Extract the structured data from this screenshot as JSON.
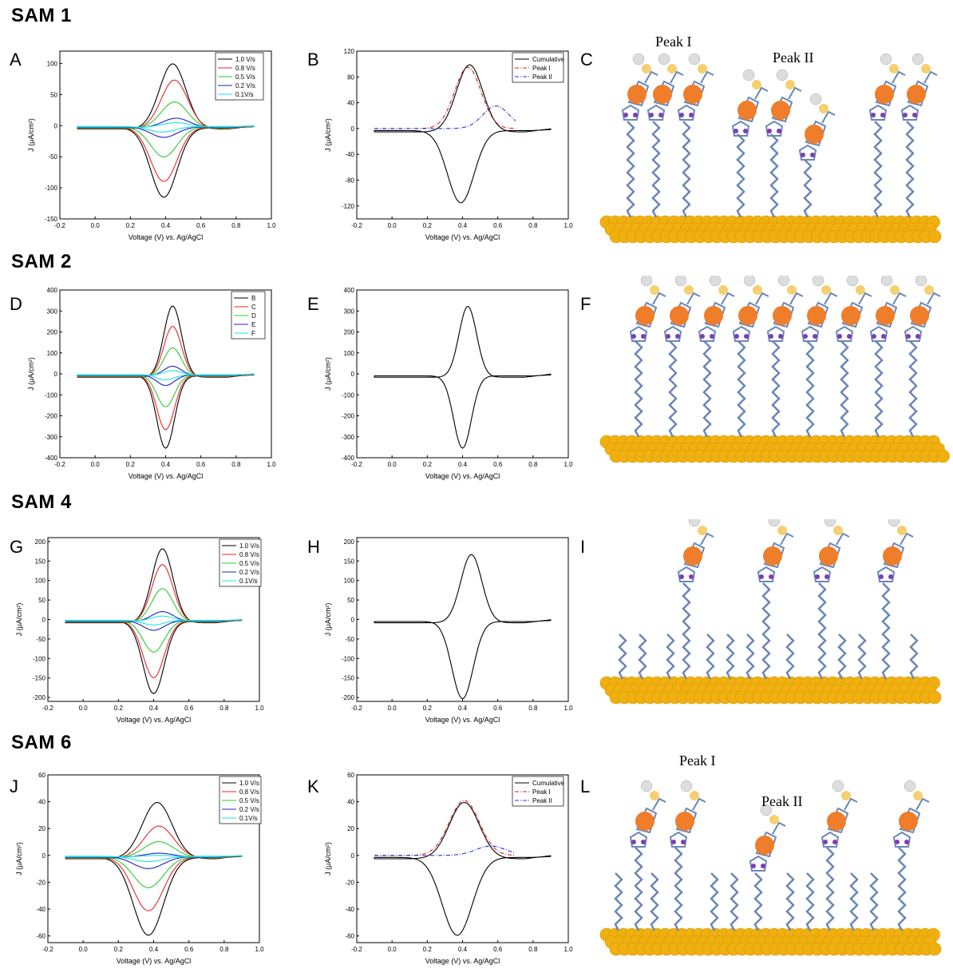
{
  "sam_titles": [
    "SAM 1",
    "SAM 2",
    "SAM 4",
    "SAM 6"
  ],
  "panel_letters": [
    "A",
    "B",
    "C",
    "D",
    "E",
    "F",
    "G",
    "H",
    "I",
    "J",
    "K",
    "L"
  ],
  "peak_labels": {
    "c_peak1": "Peak I",
    "c_peak2": "Peak II",
    "l_peak1": "Peak I",
    "l_peak2": "Peak II"
  },
  "colors": {
    "black": "#000000",
    "red": "#e8262a",
    "green": "#2ccc2c",
    "blue": "#2121c8",
    "cyan": "#1fe0e0",
    "red_dash": "#d42020",
    "blue_dash": "#3030d0",
    "gold": "#f0b010",
    "orange": "#ef7d2a",
    "chain": "#6a86b8",
    "purple": "#7b3fb5"
  },
  "chart_data": [
    {
      "id": "A",
      "type": "line",
      "xlabel": "Voltage (V) vs. Ag/AgCl",
      "ylabel": "J (μA/cm²)",
      "xlim": [
        -0.2,
        1.0
      ],
      "ylim": [
        -150,
        120
      ],
      "xticks": [
        "-0.2",
        "0.0",
        "0.2",
        "0.4",
        "0.6",
        "0.8",
        "1.0"
      ],
      "yticks": [
        "-150",
        "-100",
        "-50",
        "0",
        "50",
        "100"
      ],
      "legend": [
        "1.0 V/s",
        "0.8 V/s",
        "0.5 V/s",
        "0.2 V/s",
        "0.1V/s"
      ],
      "series": [
        {
          "name": "1.0 V/s",
          "peak_anodic": [
            0.44,
            105
          ],
          "peak_cathodic": [
            0.39,
            -112
          ]
        },
        {
          "name": "0.8 V/s",
          "peak_anodic": [
            0.45,
            78
          ],
          "peak_cathodic": [
            0.39,
            -87
          ]
        },
        {
          "name": "0.5 V/s",
          "peak_anodic": [
            0.45,
            42
          ],
          "peak_cathodic": [
            0.39,
            -48
          ]
        },
        {
          "name": "0.2 V/s",
          "peak_anodic": [
            0.46,
            15
          ],
          "peak_cathodic": [
            0.39,
            -17
          ]
        },
        {
          "name": "0.1V/s",
          "peak_anodic": [
            0.46,
            7
          ],
          "peak_cathodic": [
            0.38,
            -9
          ]
        }
      ]
    },
    {
      "id": "B",
      "type": "line",
      "xlabel": "Voltage (V) vs. Ag/AgCl",
      "ylabel": "J (μA/cm²)",
      "xlim": [
        -0.2,
        1.0
      ],
      "ylim": [
        -140,
        120
      ],
      "xticks": [
        "-0.2",
        "0.0",
        "0.2",
        "0.4",
        "0.6",
        "0.8",
        "1.0"
      ],
      "yticks": [
        "-120",
        "-80",
        "-40",
        "0",
        "40",
        "80",
        "120"
      ],
      "legend": [
        "Cumulative",
        "Peak I",
        "Peak II"
      ],
      "series": [
        {
          "name": "Cumulative",
          "peak_anodic": [
            0.44,
            104
          ],
          "peak_cathodic": [
            0.39,
            -112
          ]
        },
        {
          "name": "Peak I",
          "peak": [
            0.43,
            95
          ]
        },
        {
          "name": "Peak II",
          "peak": [
            0.59,
            35
          ]
        }
      ]
    },
    {
      "id": "D",
      "type": "line",
      "xlabel": "Voltage (V) vs. Ag/AgCl",
      "ylabel": "J (μA/cm²)",
      "xlim": [
        -0.2,
        1.0
      ],
      "ylim": [
        -400,
        400
      ],
      "xticks": [
        "-0.2",
        "0.0",
        "0.2",
        "0.4",
        "0.6",
        "0.8",
        "1.0"
      ],
      "yticks": [
        "-400",
        "-300",
        "-200",
        "-100",
        "0",
        "100",
        "200",
        "300",
        "400"
      ],
      "legend": [
        "B",
        "C",
        "D",
        "E",
        "F"
      ],
      "series": [
        {
          "name": "B",
          "peak_anodic": [
            0.44,
            340
          ],
          "peak_cathodic": [
            0.4,
            -345
          ]
        },
        {
          "name": "C",
          "peak_anodic": [
            0.44,
            240
          ],
          "peak_cathodic": [
            0.4,
            -258
          ]
        },
        {
          "name": "D",
          "peak_anodic": [
            0.44,
            135
          ],
          "peak_cathodic": [
            0.4,
            -150
          ]
        },
        {
          "name": "E",
          "peak_anodic": [
            0.44,
            45
          ],
          "peak_cathodic": [
            0.4,
            -50
          ]
        },
        {
          "name": "F",
          "peak_anodic": [
            0.44,
            22
          ],
          "peak_cathodic": [
            0.4,
            -25
          ]
        }
      ]
    },
    {
      "id": "E",
      "type": "line",
      "xlabel": "Voltage (V) vs. Ag/AgCl",
      "ylabel": "J (μA/cm²)",
      "xlim": [
        -0.2,
        1.0
      ],
      "ylim": [
        -400,
        400
      ],
      "xticks": [
        "-0.2",
        "0.0",
        "0.2",
        "0.4",
        "0.6",
        "0.8",
        "1.0"
      ],
      "yticks": [
        "-400",
        "-300",
        "-200",
        "-100",
        "0",
        "100",
        "200",
        "300",
        "400"
      ],
      "series": [
        {
          "peak_anodic": [
            0.43,
            338
          ],
          "peak_cathodic": [
            0.4,
            -345
          ]
        }
      ]
    },
    {
      "id": "G",
      "type": "line",
      "xlabel": "Voltage (V) vs. Ag/AgCl",
      "ylabel": "J (μA/cm²)",
      "xlim": [
        -0.2,
        1.0
      ],
      "ylim": [
        -210,
        210
      ],
      "xticks": [
        "-0.2",
        "0.0",
        "0.2",
        "0.4",
        "0.6",
        "0.8",
        "1.0"
      ],
      "yticks": [
        "-200",
        "-150",
        "-100",
        "-50",
        "0",
        "50",
        "100",
        "150",
        "200"
      ],
      "legend": [
        "1.0 V/s",
        "0.8 V/s",
        "0.5 V/s",
        "0.2 V/s",
        "0.1V/s"
      ],
      "series": [
        {
          "name": "1.0 V/s",
          "peak_anodic": [
            0.45,
            190
          ],
          "peak_cathodic": [
            0.4,
            -185
          ]
        },
        {
          "name": "0.8 V/s",
          "peak_anodic": [
            0.45,
            148
          ],
          "peak_cathodic": [
            0.4,
            -145
          ]
        },
        {
          "name": "0.5 V/s",
          "peak_anodic": [
            0.45,
            85
          ],
          "peak_cathodic": [
            0.4,
            -80
          ]
        },
        {
          "name": "0.2 V/s",
          "peak_anodic": [
            0.45,
            25
          ],
          "peak_cathodic": [
            0.4,
            -25
          ]
        },
        {
          "name": "0.1V/s",
          "peak_anodic": [
            0.45,
            12
          ],
          "peak_cathodic": [
            0.4,
            -12
          ]
        }
      ]
    },
    {
      "id": "H",
      "type": "line",
      "xlabel": "Voltage (V) vs. Ag/AgCl",
      "ylabel": "J (μA/cm²)",
      "xlim": [
        -0.2,
        1.0
      ],
      "ylim": [
        -210,
        210
      ],
      "xticks": [
        "-0.2",
        "0.0",
        "0.2",
        "0.4",
        "0.6",
        "0.8",
        "1.0"
      ],
      "yticks": [
        "-200",
        "-150",
        "-100",
        "-50",
        "0",
        "50",
        "100",
        "150",
        "200"
      ],
      "series": [
        {
          "peak_anodic": [
            0.45,
            175
          ],
          "peak_cathodic": [
            0.4,
            -198
          ]
        }
      ]
    },
    {
      "id": "J",
      "type": "line",
      "xlabel": "Voltage (V) vs. Ag/AgCl",
      "ylabel": "J (μA/cm²)",
      "xlim": [
        -0.2,
        1.0
      ],
      "ylim": [
        -65,
        60
      ],
      "xticks": [
        "-0.2",
        "0.0",
        "0.2",
        "0.4",
        "0.6",
        "0.8",
        "1.0"
      ],
      "yticks": [
        "-60",
        "-40",
        "-20",
        "0",
        "20",
        "40",
        "60"
      ],
      "legend": [
        "1.0 V/s",
        "0.8 V/s",
        "0.5 V/s",
        "0.2 V/s",
        "0.1V/s"
      ],
      "series": [
        {
          "name": "1.0 V/s",
          "peak_anodic": [
            0.42,
            42
          ],
          "peak_cathodic": [
            0.37,
            -58
          ]
        },
        {
          "name": "0.8 V/s",
          "peak_anodic": [
            0.43,
            24
          ],
          "peak_cathodic": [
            0.37,
            -40
          ]
        },
        {
          "name": "0.5 V/s",
          "peak_anodic": [
            0.43,
            12
          ],
          "peak_cathodic": [
            0.37,
            -23
          ]
        },
        {
          "name": "0.2 V/s",
          "peak_anodic": [
            0.43,
            3
          ],
          "peak_cathodic": [
            0.37,
            -9
          ]
        },
        {
          "name": "0.1V/s",
          "peak_anodic": [
            0.43,
            1
          ],
          "peak_cathodic": [
            0.37,
            -4
          ]
        }
      ]
    },
    {
      "id": "K",
      "type": "line",
      "xlabel": "Voltage (V) vs. Ag/AgCl",
      "ylabel": "J (μA/cm²)",
      "xlim": [
        -0.2,
        1.0
      ],
      "ylim": [
        -65,
        60
      ],
      "xticks": [
        "-0.2",
        "0.0",
        "0.2",
        "0.4",
        "0.6",
        "0.8",
        "1.0"
      ],
      "yticks": [
        "-60",
        "-40",
        "-20",
        "0",
        "20",
        "40",
        "60"
      ],
      "legend": [
        "Cumulative",
        "Peak I",
        "Peak II"
      ],
      "series": [
        {
          "name": "Cumulative",
          "peak_anodic": [
            0.41,
            42
          ],
          "peak_cathodic": [
            0.37,
            -58
          ]
        },
        {
          "name": "Peak I",
          "peak": [
            0.41,
            41
          ]
        },
        {
          "name": "Peak II",
          "peak": [
            0.56,
            7
          ]
        }
      ]
    }
  ]
}
